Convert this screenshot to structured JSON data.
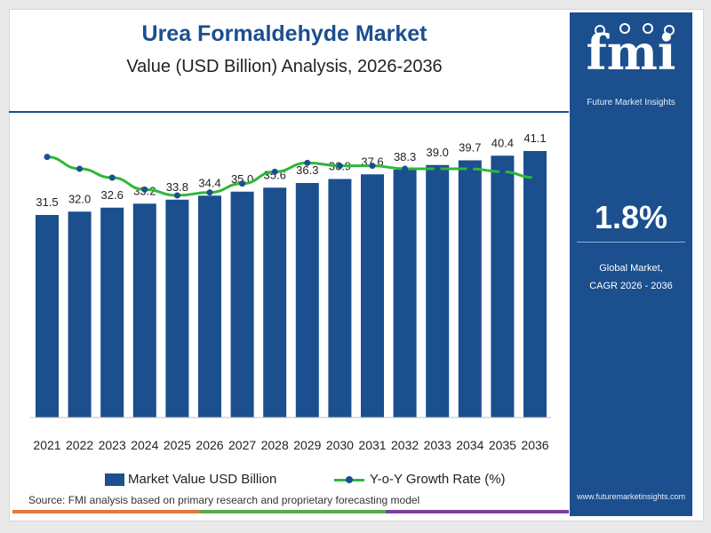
{
  "header": {
    "title": "Urea Formaldehyde Market",
    "subtitle": "Value (USD Billion) Analysis, 2026-2036"
  },
  "chart_data": {
    "type": "bar",
    "title": "Urea Formaldehyde Market",
    "subtitle": "Value (USD Billion) Analysis, 2026-2036",
    "categories": [
      "2021",
      "2022",
      "2023",
      "2024",
      "2025",
      "2026",
      "2027",
      "2028",
      "2029",
      "2030",
      "2031",
      "2032",
      "2033",
      "2034",
      "2035",
      "2036"
    ],
    "series": [
      {
        "name": "Market Value USD Billion",
        "type": "bar",
        "values": [
          31.5,
          32.0,
          32.6,
          33.2,
          33.8,
          34.4,
          35.0,
          35.6,
          36.3,
          36.9,
          37.6,
          38.3,
          39.0,
          39.7,
          40.4,
          41.1
        ],
        "labels": [
          "31.5",
          "32.0",
          "32.6",
          "33.2",
          "33.8",
          "34.4",
          "35.0",
          "35.6",
          "36.3",
          "36.9",
          "37.6",
          "38.3",
          "39.0",
          "39.7",
          "40.4",
          "41.1"
        ],
        "color": "#1b4f8e"
      },
      {
        "name": "Y-o-Y Growth Rate (%)",
        "type": "line",
        "values": [
          2.2,
          2.0,
          1.85,
          1.65,
          1.55,
          1.6,
          1.75,
          1.95,
          2.1,
          2.05,
          2.05,
          2.0,
          2.0,
          2.0,
          1.95,
          1.85
        ],
        "color": "#2db83a",
        "marker_color": "#1b4f8e"
      }
    ],
    "xlabel": "",
    "ylabel": "",
    "ylim": [
      0,
      42
    ],
    "grid": false,
    "legend": "bottom"
  },
  "legend": {
    "bar_label": "Market Value USD Billion",
    "line_label": "Y-o-Y Growth Rate (%)"
  },
  "source": "Source: FMI analysis based on primary research and proprietary forecasting model",
  "side_panel": {
    "logo": "fmi",
    "brand": "Future Market Insights",
    "cagr_value": "1.8%",
    "cagr_label_line1": "Global Market,",
    "cagr_label_line2": "CAGR 2026 - 2036",
    "website": "www.futuremarketinsights.com"
  },
  "colors": {
    "brand_blue": "#1b4f8e",
    "line_green": "#2db83a",
    "stripe_orange": "#e07b39",
    "stripe_green": "#5aa84a",
    "stripe_purple": "#7b3fa0"
  }
}
